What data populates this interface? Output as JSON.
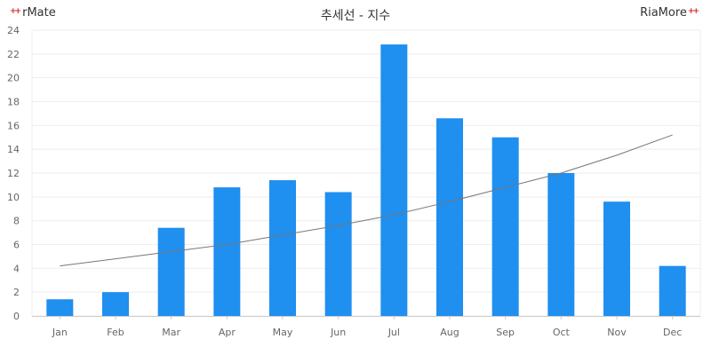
{
  "header": {
    "title": "추세선 - 지수",
    "logo_left": "rMate",
    "logo_right": "RiaMore"
  },
  "colors": {
    "bar": "#1f8ff0",
    "trendline": "#777777",
    "grid": "#eeeeee",
    "logo_accent": "#e02020"
  },
  "chart_data": {
    "type": "bar",
    "title": "추세선 - 지수",
    "categories": [
      "Jan",
      "Feb",
      "Mar",
      "Apr",
      "May",
      "Jun",
      "Jul",
      "Aug",
      "Sep",
      "Oct",
      "Nov",
      "Dec"
    ],
    "values": [
      1.4,
      2.0,
      7.4,
      10.8,
      11.4,
      10.4,
      22.8,
      16.6,
      15.0,
      12.0,
      9.6,
      4.2
    ],
    "trendline": {
      "type": "exponential",
      "values": [
        4.2,
        4.8,
        5.4,
        6.0,
        6.8,
        7.6,
        8.5,
        9.6,
        10.8,
        12.0,
        13.5,
        15.2
      ]
    },
    "yticks": [
      0,
      2,
      4,
      6,
      8,
      10,
      12,
      14,
      16,
      18,
      20,
      22,
      24
    ],
    "ylim": [
      0,
      24
    ],
    "xlabel": "",
    "ylabel": "",
    "grid": true,
    "legend": "none"
  }
}
